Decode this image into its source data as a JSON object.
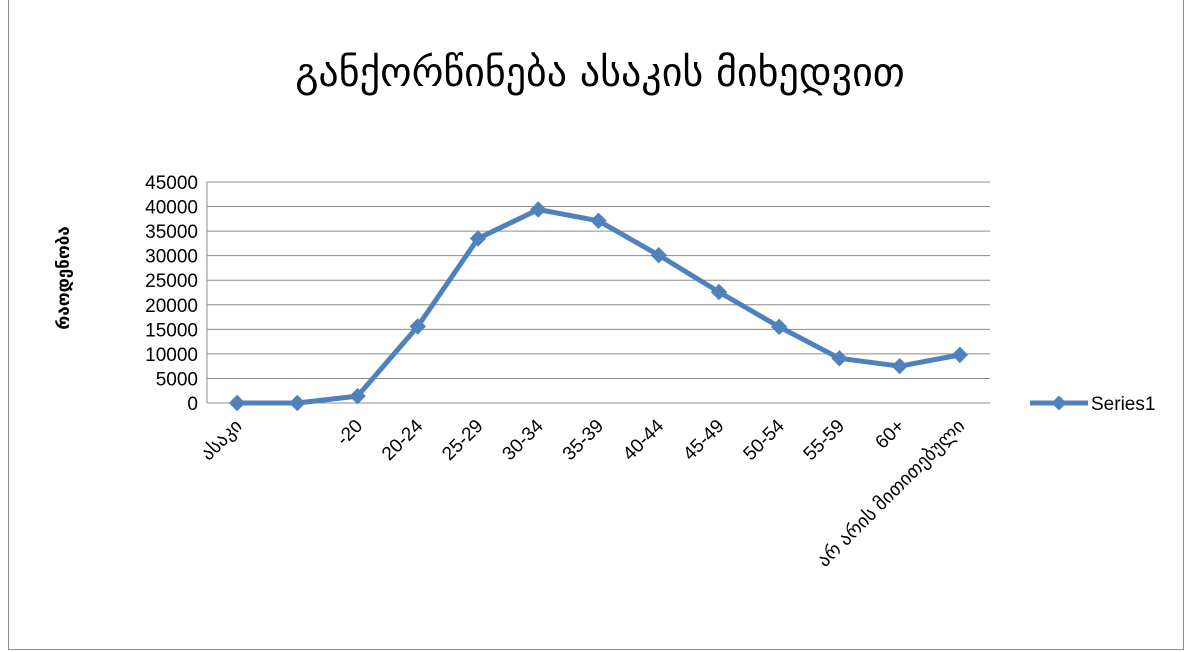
{
  "chart_data": {
    "type": "line",
    "title": "განქორწინება ასაკის მიხედვით",
    "xlabel": "",
    "ylabel": "რაოდენობა",
    "categories": [
      "ასაკი",
      "",
      "-20",
      "20-24",
      "25-29",
      "30-34",
      "35-39",
      "40-44",
      "45-49",
      "50-54",
      "55-59",
      "60+",
      "არ არის მითითებული"
    ],
    "series": [
      {
        "name": "Series1",
        "color": "#4f81bd",
        "values": [
          0,
          0,
          1400,
          15600,
          33500,
          39400,
          37100,
          30100,
          22600,
          15500,
          9100,
          7500,
          9800
        ]
      }
    ],
    "ylim": [
      0,
      45000
    ],
    "yticks": [
      0,
      5000,
      10000,
      15000,
      20000,
      25000,
      30000,
      35000,
      40000,
      45000
    ],
    "grid": true,
    "legend": "right"
  }
}
